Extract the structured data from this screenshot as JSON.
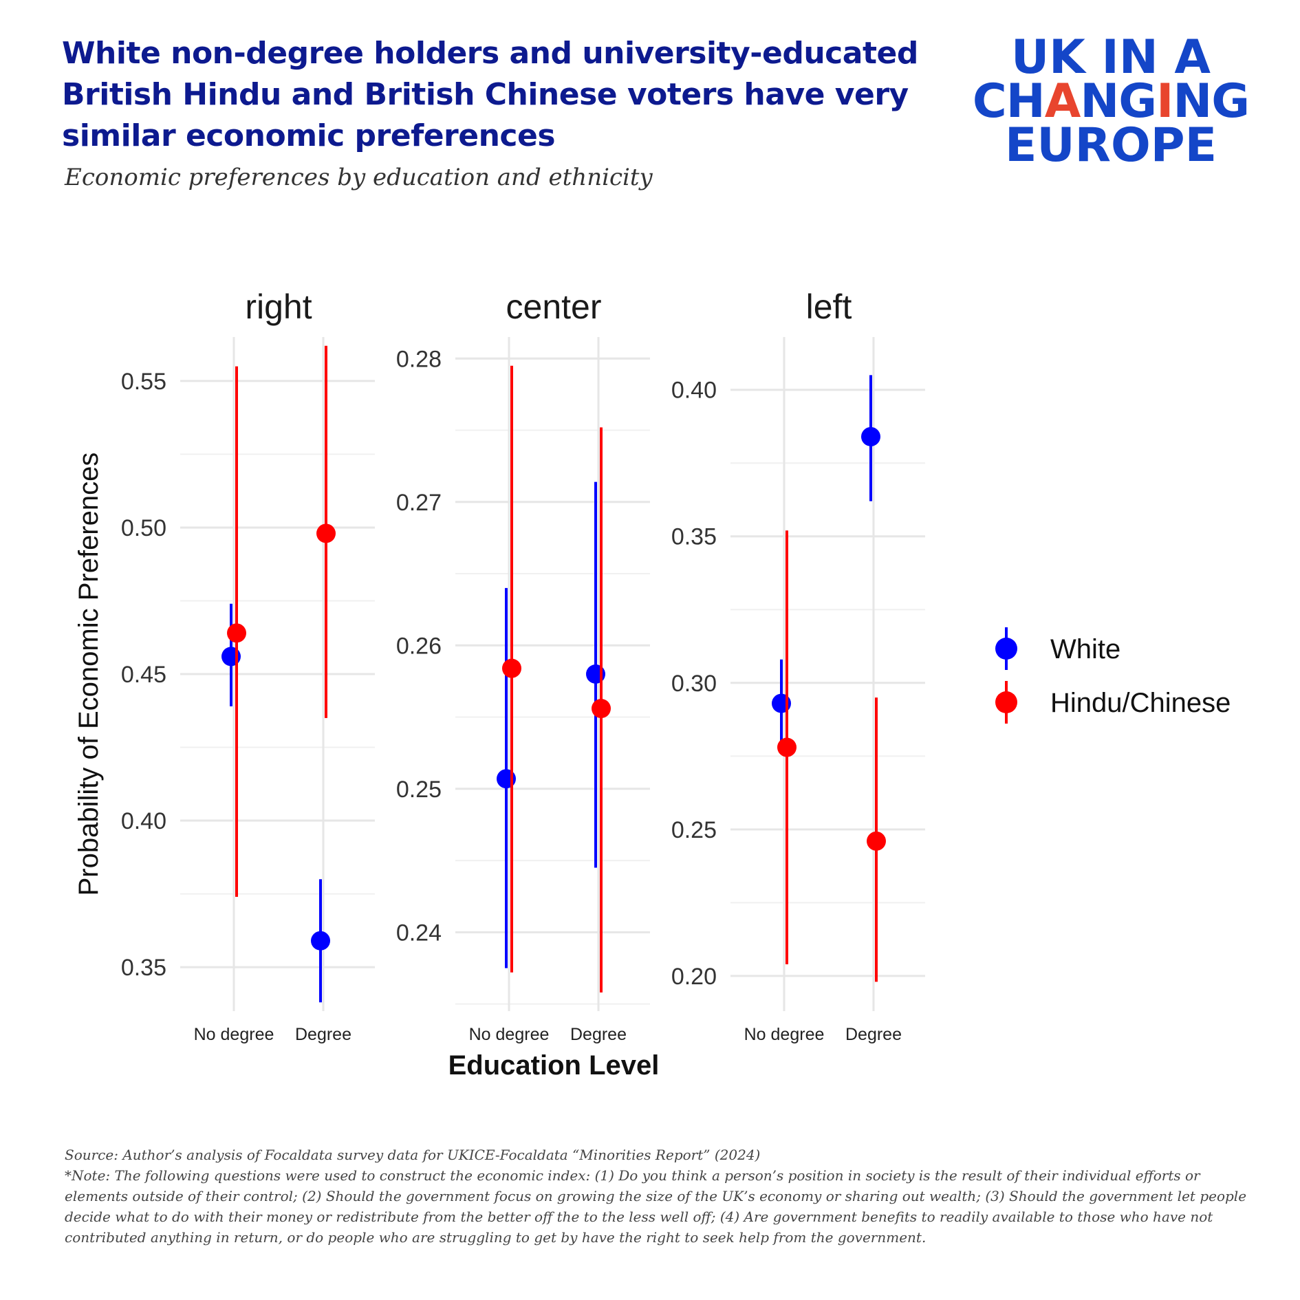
{
  "header": {
    "title": "White non-degree holders and university-educated British Hindu and British Chinese voters have very similar economic preferences",
    "subtitle": "Economic preferences by education and ethnicity"
  },
  "logo": {
    "line1": "UK IN A",
    "line2_parts": [
      "CH",
      "A",
      "N",
      "G",
      "I",
      "NG"
    ],
    "line3": "EUROPE",
    "accent_color": "#e8452e",
    "brand_color": "#1446c8"
  },
  "footer": {
    "source": "Source: Author’s analysis of Focaldata survey data for UKICE-Focaldata “Minorities Report” (2024)",
    "note": "*Note: The following questions were used to construct the economic index: (1) Do you think a person’s position in society is the result of their individual efforts or elements outside of their control; (2) Should the government focus on growing the size of the UK’s economy or sharing out wealth; (3) Should the government let people decide what to do with their money or redistribute from the better off the to the less well off; (4) Are government benefits to readily available to those who have not contributed anything in return, or do people who are struggling to get by have the right to seek help from the government."
  },
  "chart_data": {
    "type": "scatter",
    "subtype": "pointrange",
    "xlabel": "Education Level",
    "ylabel": "Probability of Economic Preferences",
    "categories": [
      "No degree",
      "Degree"
    ],
    "series_legend": [
      {
        "name": "White",
        "color": "#0000ff"
      },
      {
        "name": "Hindu/Chinese",
        "color": "#ff0000"
      }
    ],
    "legend_position": "right",
    "grid": true,
    "panels": [
      {
        "facet": "right",
        "ylim": [
          0.335,
          0.565
        ],
        "yticks": [
          "0.35",
          "0.40",
          "0.45",
          "0.50",
          "0.55"
        ],
        "ytick_values": [
          0.35,
          0.4,
          0.45,
          0.5,
          0.55
        ],
        "series": [
          {
            "name": "White",
            "points": [
              {
                "category": "No degree",
                "estimate": 0.456,
                "low": 0.439,
                "high": 0.474
              },
              {
                "category": "Degree",
                "estimate": 0.359,
                "low": 0.338,
                "high": 0.38
              }
            ]
          },
          {
            "name": "Hindu/Chinese",
            "points": [
              {
                "category": "No degree",
                "estimate": 0.464,
                "low": 0.374,
                "high": 0.555
              },
              {
                "category": "Degree",
                "estimate": 0.498,
                "low": 0.435,
                "high": 0.562
              }
            ]
          }
        ]
      },
      {
        "facet": "center",
        "ylim": [
          0.2345,
          0.2815
        ],
        "yticks": [
          "0.24",
          "0.25",
          "0.26",
          "0.27",
          "0.28"
        ],
        "ytick_values": [
          0.24,
          0.25,
          0.26,
          0.27,
          0.28
        ],
        "series": [
          {
            "name": "White",
            "points": [
              {
                "category": "No degree",
                "estimate": 0.2507,
                "low": 0.2375,
                "high": 0.264
              },
              {
                "category": "Degree",
                "estimate": 0.258,
                "low": 0.2445,
                "high": 0.2714
              }
            ]
          },
          {
            "name": "Hindu/Chinese",
            "points": [
              {
                "category": "No degree",
                "estimate": 0.2584,
                "low": 0.2372,
                "high": 0.2795
              },
              {
                "category": "Degree",
                "estimate": 0.2556,
                "low": 0.2358,
                "high": 0.2752
              }
            ]
          }
        ]
      },
      {
        "facet": "left",
        "ylim": [
          0.188,
          0.418
        ],
        "yticks": [
          "0.20",
          "0.25",
          "0.30",
          "0.35",
          "0.40"
        ],
        "ytick_values": [
          0.2,
          0.25,
          0.3,
          0.35,
          0.4
        ],
        "series": [
          {
            "name": "White",
            "points": [
              {
                "category": "No degree",
                "estimate": 0.293,
                "low": 0.278,
                "high": 0.308
              },
              {
                "category": "Degree",
                "estimate": 0.384,
                "low": 0.362,
                "high": 0.405
              }
            ]
          },
          {
            "name": "Hindu/Chinese",
            "points": [
              {
                "category": "No degree",
                "estimate": 0.278,
                "low": 0.204,
                "high": 0.352
              },
              {
                "category": "Degree",
                "estimate": 0.246,
                "low": 0.198,
                "high": 0.295
              }
            ]
          }
        ]
      }
    ]
  }
}
